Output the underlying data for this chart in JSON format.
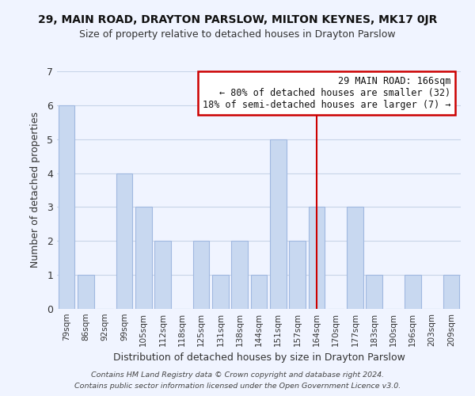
{
  "title1": "29, MAIN ROAD, DRAYTON PARSLOW, MILTON KEYNES, MK17 0JR",
  "title2": "Size of property relative to detached houses in Drayton Parslow",
  "xlabel": "Distribution of detached houses by size in Drayton Parslow",
  "ylabel": "Number of detached properties",
  "categories": [
    "79sqm",
    "86sqm",
    "92sqm",
    "99sqm",
    "105sqm",
    "112sqm",
    "118sqm",
    "125sqm",
    "131sqm",
    "138sqm",
    "144sqm",
    "151sqm",
    "157sqm",
    "164sqm",
    "170sqm",
    "177sqm",
    "183sqm",
    "190sqm",
    "196sqm",
    "203sqm",
    "209sqm"
  ],
  "values": [
    6,
    1,
    0,
    4,
    3,
    2,
    0,
    2,
    1,
    2,
    1,
    5,
    2,
    3,
    0,
    3,
    1,
    0,
    1,
    0,
    1
  ],
  "bar_color": "#c8d8f0",
  "bar_edgecolor": "#a0b8e0",
  "red_line_index": 13,
  "red_line_color": "#cc0000",
  "ylim": [
    0,
    7
  ],
  "yticks": [
    0,
    1,
    2,
    3,
    4,
    5,
    6,
    7
  ],
  "annotation_title": "29 MAIN ROAD: 166sqm",
  "annotation_line1": "← 80% of detached houses are smaller (32)",
  "annotation_line2": "18% of semi-detached houses are larger (7) →",
  "annotation_box_edgecolor": "#cc0000",
  "annotation_box_facecolor": "#ffffff",
  "footer1": "Contains HM Land Registry data © Crown copyright and database right 2024.",
  "footer2": "Contains public sector information licensed under the Open Government Licence v3.0.",
  "background_color": "#f0f4ff",
  "grid_color": "#c8d4e8"
}
